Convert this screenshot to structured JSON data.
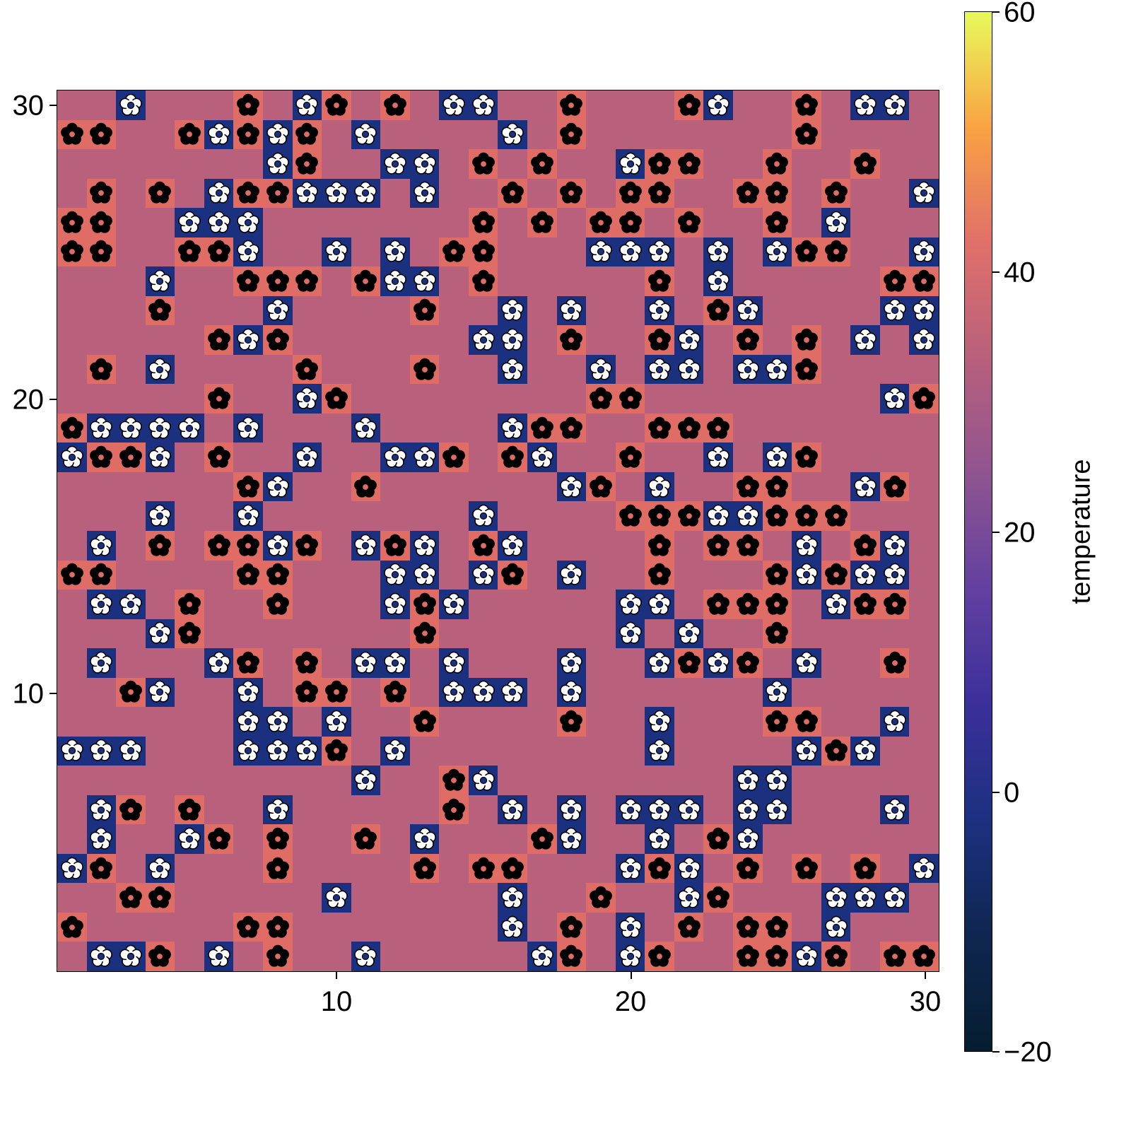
{
  "chart_data": {
    "type": "heatmap",
    "title": "",
    "xlabel": "",
    "ylabel": "",
    "x_range": [
      1,
      30
    ],
    "y_range": [
      1,
      30
    ],
    "x_ticks": [
      10,
      20,
      30
    ],
    "y_ticks": [
      10,
      20,
      30
    ],
    "colorbar": {
      "label": "temperature",
      "range": [
        -20,
        60
      ],
      "ticks": [
        -20,
        0,
        20,
        40,
        60
      ],
      "colormap": "thermal"
    },
    "legend_codes": {
      "P": {
        "value": 20,
        "color": "#b8607c",
        "marker": "none"
      },
      "S": {
        "value": 30,
        "color": "#e06c66",
        "marker": "black-flower"
      },
      "N": {
        "value": -10,
        "color": "#1b3180",
        "marker": "white-flower"
      }
    },
    "rows_note": "rows listed from y=30 (top) down to y=1 (bottom); columns x=1..30 left to right",
    "rows": [
      "PPNPPPSPNSPSPNNPPSPPPSNPPSPNNP",
      "SSPPSNSNSPNPPPPNPSPPPPPPPSPPPP",
      "PPPPPPPNSPPNNPSPSPPNSSPPSPPSPP",
      "PSPSPNSSNNNPNPPSPSPSSPPSSPSPPN",
      "SSPPNNNPPPPPPPSPSPSSPSPPSPNPPP",
      "SSPPSSNPPNPNPSSPPPNNNPNPNSSPPN",
      "PPPNPPSSSPSNNPSPPPPPSPNPPPPPSS",
      "PPPSPPPNPPPPSPPNPNPPNPSNPPPPNN",
      "PPPPPSNSPPPPPPNNPSPPSNPSPSPNPN",
      "PSPNPPPPSPPPSPPNPPNPNNPNNSPPPP",
      "PPPPPSPPNSPPPPPPPPSSPPPPPPPPNS",
      "SNNNNPNPPPNPPPPNSSPPSSSPPPPPPP",
      "NSSNPSPPNPPNNSPSNPPSPPNPNSPPPP",
      "PPPPPPSNPPSPPPPPPNSPNPPSSPPNSP",
      "PPPNPPNPPPPPPPNPPPPSSSNNSSSPPP",
      "PNPSPSSNSPNSNPSNPPPPSPSSPNPSNP",
      "SSPPPPSSPPPNNPNSPNPPSPPPSNSNNP",
      "PNNPSPPSPPPNSNPPPPPNNPSSSPNSSP",
      "PPPNSPPPPPPPSPPPPPPNPNPPSPPPPP",
      "PNPPPNSPSPNNPNPPPNPPNSNSPNPPSP",
      "PPSNPPNPSSPSPNNNPNPPPPPPNPPPPP",
      "PPPPPPNNPNPPSPPPPSPPNPPPSSPPNP",
      "NNNPPPNNNSPNPPPPPPPPNPPPPNSNPP",
      "PPPPPPPPPPNPPSNPPPPPPPPNNPPPPP",
      "PNSPSPPNPPPPPSPNPNPNNNPNNPPPNP",
      "PNPPNSPSPPSPNPPPSNPPNPSNPPPPPP",
      "NSPNPPPSPPPPSPSSPPPNSNPSPSPSPN",
      "PPSSPPPPPNPPPPPNPPSPPNSPPPNNNP",
      "SPPPPPSSPPPPPPPNPSPNPSPSSPNPPP",
      "PNNSPNPSPPNPPPPPNSPNSPPSSNSPSS"
    ]
  },
  "axes": {
    "x_tick_labels": [
      "10",
      "20",
      "30"
    ],
    "y_tick_labels": [
      "30",
      "20",
      "10"
    ]
  },
  "colorbar": {
    "label": "temperature",
    "tick_labels": [
      "60",
      "40",
      "20",
      "0",
      "−20"
    ],
    "gradient": [
      "#e8fa5b",
      "#f9a242",
      "#e0706a",
      "#b8607c",
      "#8f5490",
      "#6240a0",
      "#3b2f9a",
      "#1b3180",
      "#0f2650",
      "#041e30"
    ]
  }
}
